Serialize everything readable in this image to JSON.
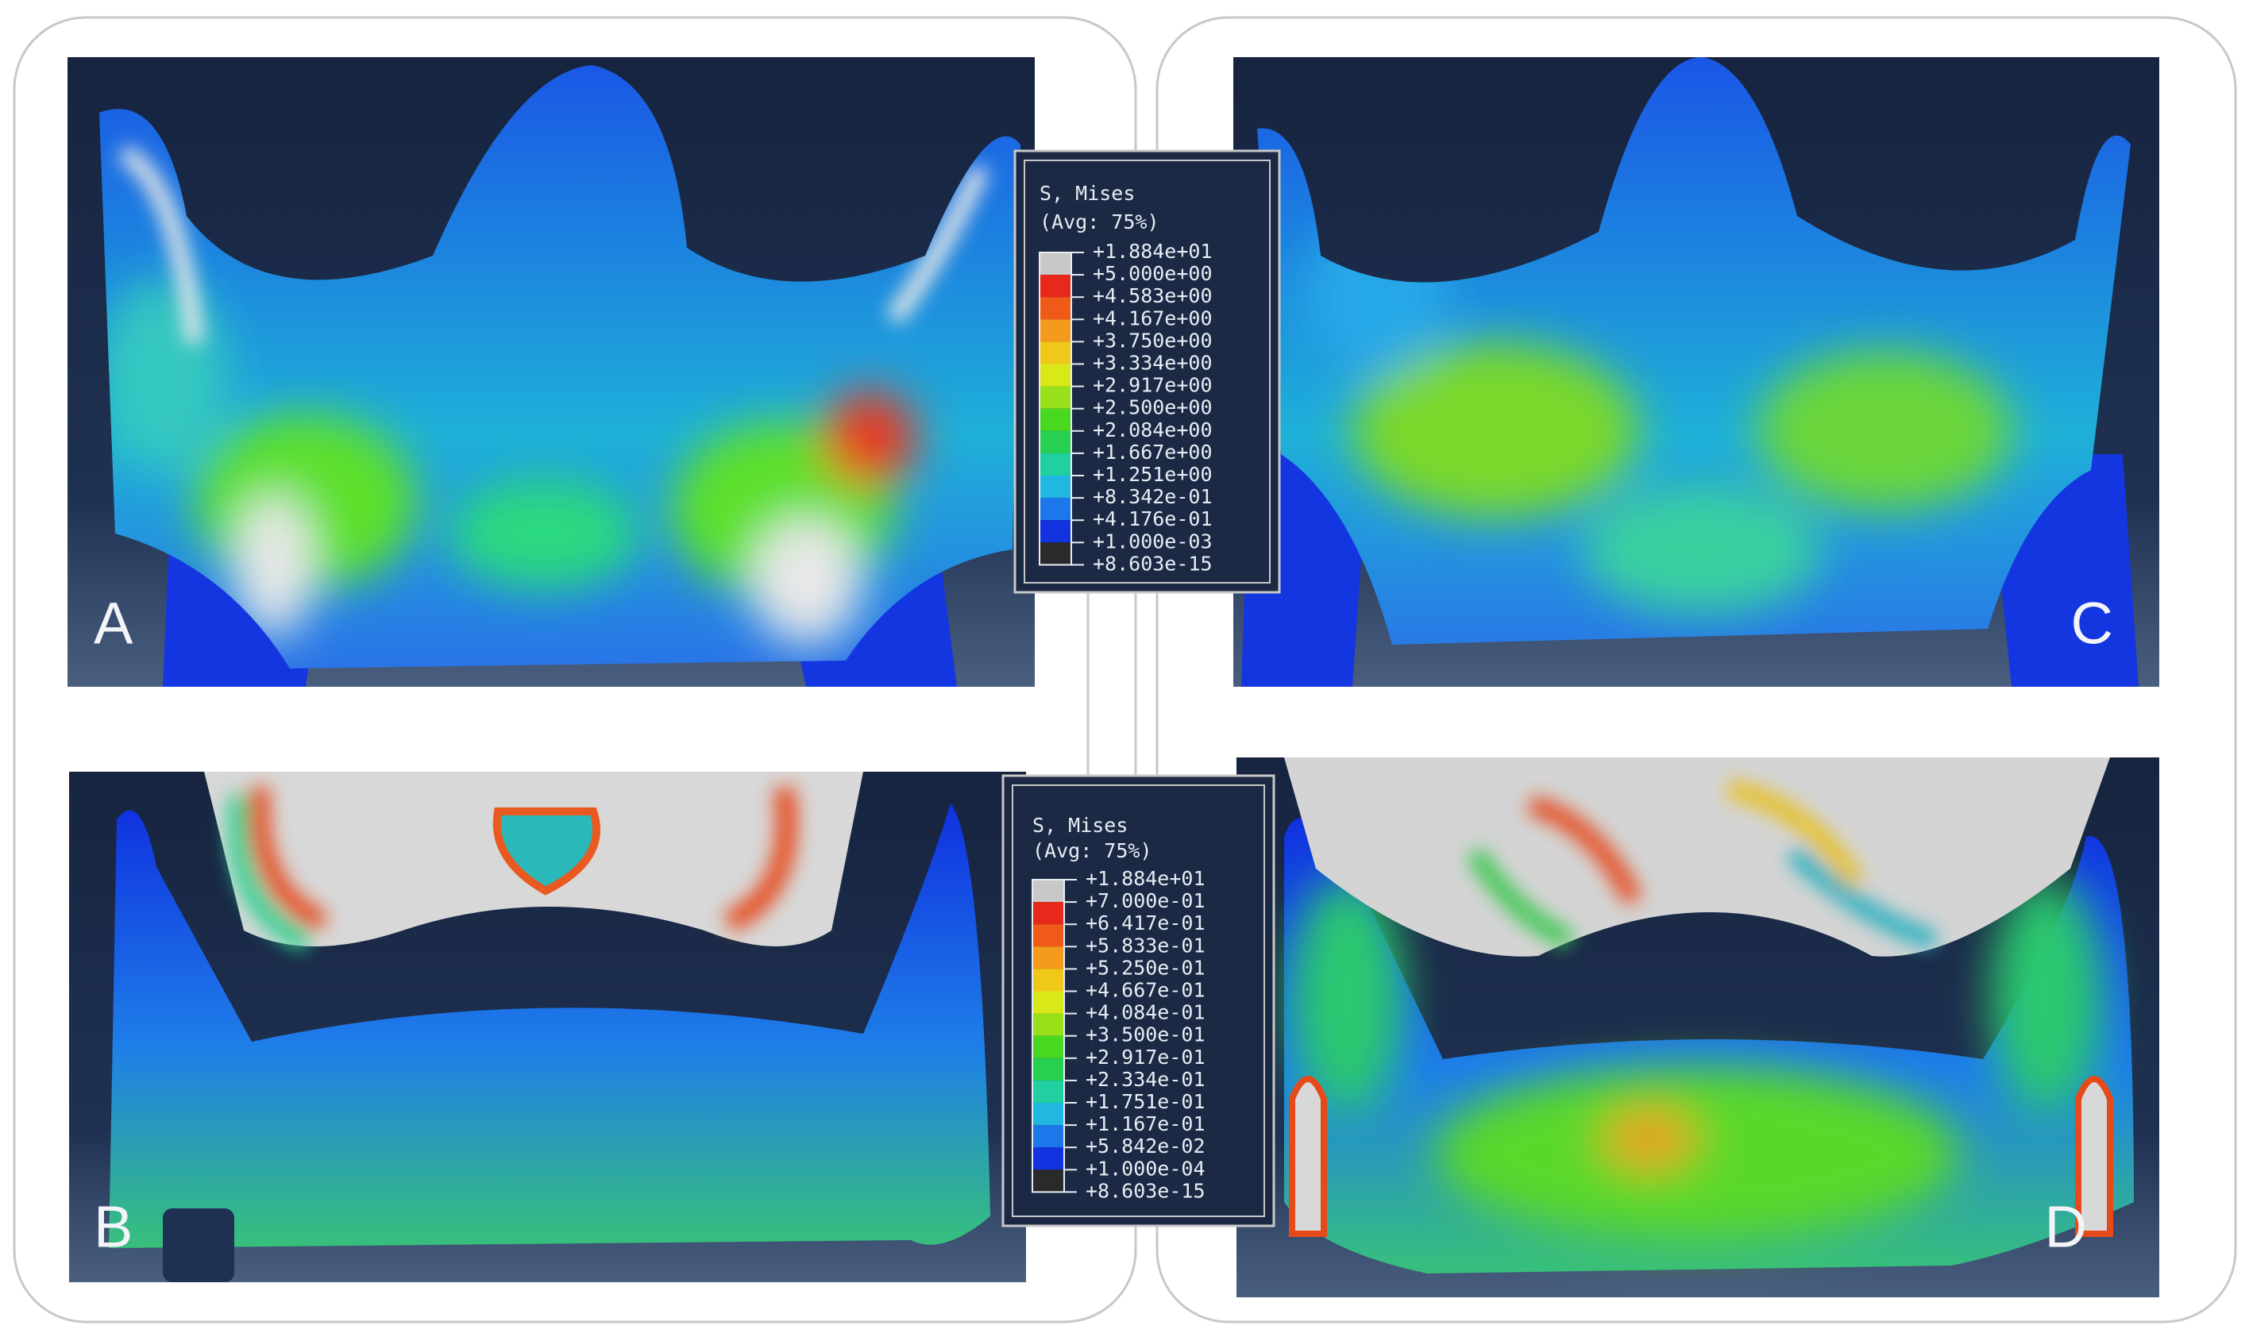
{
  "panels": {
    "a": "A",
    "b": "B",
    "c": "C",
    "d": "D"
  },
  "legend_top": {
    "title": "S, Mises",
    "subtitle": "(Avg: 75%)",
    "labels": [
      "+1.884e+01",
      "+5.000e+00",
      "+4.583e+00",
      "+4.167e+00",
      "+3.750e+00",
      "+3.334e+00",
      "+2.917e+00",
      "+2.500e+00",
      "+2.084e+00",
      "+1.667e+00",
      "+1.251e+00",
      "+8.342e-01",
      "+4.176e-01",
      "+1.000e-03",
      "+8.603e-15"
    ]
  },
  "legend_bottom": {
    "title": "S, Mises",
    "subtitle": "(Avg: 75%)",
    "labels": [
      "+1.884e+01",
      "+7.000e-01",
      "+6.417e-01",
      "+5.833e-01",
      "+5.250e-01",
      "+4.667e-01",
      "+4.084e-01",
      "+3.500e-01",
      "+2.917e-01",
      "+2.334e-01",
      "+1.751e-01",
      "+1.167e-01",
      "+5.842e-02",
      "+1.000e-04",
      "+8.603e-15"
    ]
  }
}
